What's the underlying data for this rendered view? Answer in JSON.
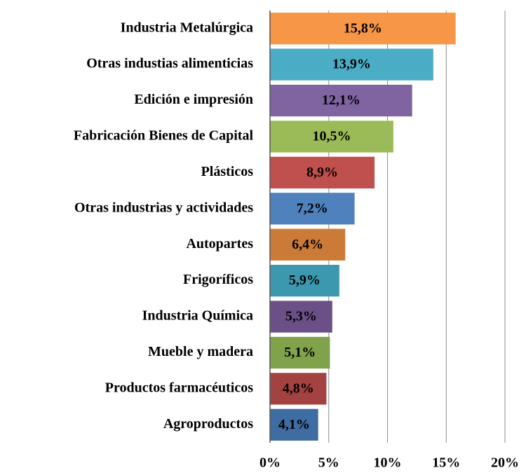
{
  "chart_data": {
    "type": "bar",
    "orientation": "horizontal",
    "categories": [
      "Industria Metalúrgica",
      "Otras industias alimenticias",
      "Edición e impresión",
      "Fabricación Bienes de Capital",
      "Plásticos",
      "Otras industrias y actividades",
      "Autopartes",
      "Frigoríficos",
      "Industria Química",
      "Mueble y madera",
      "Productos farmacéuticos",
      "Agroproductos"
    ],
    "values": [
      15.8,
      13.9,
      12.1,
      10.5,
      8.9,
      7.2,
      6.4,
      5.9,
      5.3,
      5.1,
      4.8,
      4.1
    ],
    "value_labels": [
      "15,8%",
      "13,9%",
      "12,1%",
      "10,5%",
      "8,9%",
      "7,2%",
      "6,4%",
      "5,9%",
      "5,3%",
      "5,1%",
      "4,8%",
      "4,1%"
    ],
    "colors": [
      "#f79646",
      "#4bacc6",
      "#8064a2",
      "#9bbb59",
      "#c0504d",
      "#4f81bd",
      "#cc7a38",
      "#3c98ae",
      "#6a5087",
      "#80a24a",
      "#a34240",
      "#3f6ca3"
    ],
    "xlim": [
      0,
      20
    ],
    "xticks": [
      {
        "value": 0,
        "label": "0%"
      },
      {
        "value": 5,
        "label": "5%"
      },
      {
        "value": 10,
        "label": "10%"
      },
      {
        "value": 15,
        "label": "15%"
      },
      {
        "value": 20,
        "label": "20%"
      }
    ],
    "grid": true
  }
}
